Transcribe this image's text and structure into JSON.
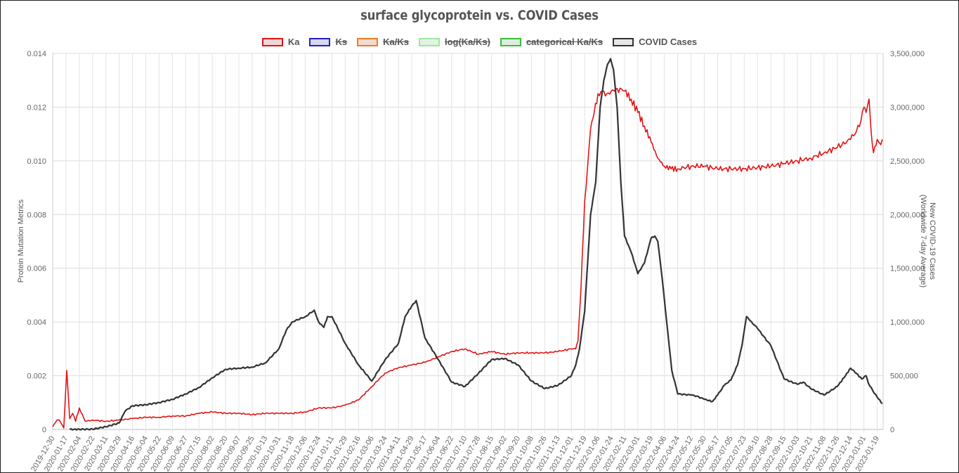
{
  "chart_data": {
    "type": "line",
    "title": "surface glycoprotein vs. COVID Cases",
    "legend": {
      "placement": "top",
      "items": [
        {
          "label": "Ka",
          "color": "#e11515",
          "fill": "#f2d6d6",
          "hidden": false
        },
        {
          "label": "Ks",
          "color": "#2222cc",
          "fill": "#d8d8ee",
          "hidden": true
        },
        {
          "label": "Ka/Ks",
          "color": "#f07a2a",
          "fill": "#f2dcd0",
          "hidden": true
        },
        {
          "label": "log(Ka/Ks)",
          "color": "#9de89d",
          "fill": "#e3f3e3",
          "hidden": true
        },
        {
          "label": "categorical Ka/Ks",
          "color": "#3dbb3d",
          "fill": "#dceedc",
          "hidden": true
        },
        {
          "label": "COVID Cases",
          "color": "#333333",
          "fill": "#e6e6e6",
          "hidden": false
        }
      ]
    },
    "y_left": {
      "label": "Protein Mutation Metrics",
      "ylim": [
        0,
        0.014
      ],
      "ticks": [
        "0",
        "0.002",
        "0.004",
        "0.006",
        "0.008",
        "0.010",
        "0.012",
        "0.014"
      ]
    },
    "y_right": {
      "label_lines": [
        "New COVID-19 Cases",
        "(Worldwide 7-day Average)"
      ],
      "ylim": [
        0,
        3500000
      ],
      "ticks": [
        "0",
        "500,000",
        "1,000,000",
        "1,500,000",
        "2,000,000",
        "2,500,000",
        "3,000,000",
        "3,500,000"
      ]
    },
    "grid": true,
    "x_ticks": [
      "2019-12-30",
      "2020-01-17",
      "2020-02-04",
      "2020-02-22",
      "2020-03-11",
      "2020-03-29",
      "2020-04-16",
      "2020-05-04",
      "2020-05-22",
      "2020-06-09",
      "2020-06-27",
      "2020-07-15",
      "2020-08-02",
      "2020-08-20",
      "2020-09-07",
      "2020-09-25",
      "2020-10-13",
      "2020-10-31",
      "2020-11-18",
      "2020-12-06",
      "2020-12-24",
      "2021-01-11",
      "2021-01-29",
      "2021-02-16",
      "2021-03-06",
      "2021-03-24",
      "2021-04-11",
      "2021-04-29",
      "2021-05-17",
      "2021-06-04",
      "2021-06-22",
      "2021-07-10",
      "2021-07-28",
      "2021-08-15",
      "2021-09-02",
      "2021-09-20",
      "2021-10-08",
      "2021-10-26",
      "2021-11-13",
      "2021-12-01",
      "2021-12-19",
      "2022-01-06",
      "2022-01-24",
      "2022-02-11",
      "2022-03-01",
      "2022-03-19",
      "2022-04-06",
      "2022-04-24",
      "2022-05-12",
      "2022-05-30",
      "2022-06-17",
      "2022-07-05",
      "2022-07-23",
      "2022-08-10",
      "2022-08-28",
      "2022-09-15",
      "2022-10-03",
      "2022-10-21",
      "2022-11-08",
      "2022-11-26",
      "2022-12-14",
      "2023-01-01",
      "2023-01-19"
    ],
    "series": [
      {
        "name": "Ka",
        "axis": "left",
        "color": "#e11515",
        "x": [
          "2019-12-30",
          "2020-01-05",
          "2020-01-08",
          "2020-01-11",
          "2020-01-14",
          "2020-01-18",
          "2020-01-22",
          "2020-01-26",
          "2020-01-30",
          "2020-02-04",
          "2020-02-12",
          "2020-02-22",
          "2020-03-11",
          "2020-03-29",
          "2020-04-16",
          "2020-05-04",
          "2020-05-22",
          "2020-06-09",
          "2020-06-27",
          "2020-07-15",
          "2020-08-02",
          "2020-08-20",
          "2020-09-07",
          "2020-09-25",
          "2020-10-13",
          "2020-10-31",
          "2020-11-18",
          "2020-12-06",
          "2020-12-24",
          "2021-01-11",
          "2021-01-29",
          "2021-02-16",
          "2021-03-06",
          "2021-03-24",
          "2021-04-11",
          "2021-04-29",
          "2021-05-17",
          "2021-06-04",
          "2021-06-22",
          "2021-07-10",
          "2021-07-28",
          "2021-08-15",
          "2021-09-02",
          "2021-09-20",
          "2021-10-08",
          "2021-10-26",
          "2021-11-13",
          "2021-12-01",
          "2021-12-07",
          "2021-12-10",
          "2021-12-14",
          "2021-12-19",
          "2021-12-23",
          "2021-12-27",
          "2022-01-01",
          "2022-01-06",
          "2022-01-12",
          "2022-01-18",
          "2022-01-24",
          "2022-02-01",
          "2022-02-11",
          "2022-02-20",
          "2022-03-01",
          "2022-03-10",
          "2022-03-19",
          "2022-03-28",
          "2022-04-06",
          "2022-04-15",
          "2022-04-24",
          "2022-05-12",
          "2022-05-30",
          "2022-06-17",
          "2022-07-05",
          "2022-07-23",
          "2022-08-10",
          "2022-08-28",
          "2022-09-15",
          "2022-10-03",
          "2022-10-21",
          "2022-11-08",
          "2022-11-26",
          "2022-12-14",
          "2022-12-22",
          "2022-12-28",
          "2023-01-01",
          "2023-01-04",
          "2023-01-08",
          "2023-01-11",
          "2023-01-14",
          "2023-01-19",
          "2023-01-24",
          "2023-01-26"
        ],
        "values": [
          0.0001,
          0.00035,
          0.00035,
          0.0002,
          5e-05,
          0.0022,
          0.0004,
          0.0006,
          0.0003,
          0.0008,
          0.0003,
          0.00035,
          0.0003,
          0.00035,
          0.0004,
          0.00045,
          0.00045,
          0.0005,
          0.0005,
          0.0006,
          0.00065,
          0.0006,
          0.0006,
          0.00055,
          0.0006,
          0.0006,
          0.0006,
          0.00065,
          0.0008,
          0.0008,
          0.0009,
          0.0011,
          0.0016,
          0.0021,
          0.0023,
          0.0024,
          0.0025,
          0.0027,
          0.0029,
          0.003,
          0.0028,
          0.0029,
          0.0028,
          0.00285,
          0.00285,
          0.00285,
          0.0029,
          0.003,
          0.003,
          0.0033,
          0.0052,
          0.0085,
          0.0098,
          0.0112,
          0.0118,
          0.0125,
          0.0126,
          0.0125,
          0.0126,
          0.0127,
          0.0126,
          0.0123,
          0.0118,
          0.0113,
          0.0107,
          0.0101,
          0.0098,
          0.0097,
          0.0097,
          0.0098,
          0.0098,
          0.0097,
          0.0097,
          0.0097,
          0.00975,
          0.0098,
          0.0099,
          0.01,
          0.0101,
          0.0103,
          0.0105,
          0.0108,
          0.0111,
          0.0115,
          0.012,
          0.0118,
          0.0123,
          0.011,
          0.0103,
          0.0108,
          0.0106,
          0.0108
        ]
      },
      {
        "name": "COVID Cases",
        "axis": "right",
        "color": "#333333",
        "x": [
          "2020-01-22",
          "2020-02-04",
          "2020-02-22",
          "2020-03-11",
          "2020-03-29",
          "2020-04-06",
          "2020-04-16",
          "2020-05-04",
          "2020-05-22",
          "2020-06-09",
          "2020-06-27",
          "2020-07-15",
          "2020-08-02",
          "2020-08-20",
          "2020-09-07",
          "2020-09-25",
          "2020-10-13",
          "2020-10-31",
          "2020-11-10",
          "2020-11-18",
          "2020-12-06",
          "2020-12-18",
          "2020-12-24",
          "2020-12-31",
          "2021-01-05",
          "2021-01-11",
          "2021-01-29",
          "2021-02-16",
          "2021-03-06",
          "2021-03-24",
          "2021-04-11",
          "2021-04-20",
          "2021-04-29",
          "2021-05-05",
          "2021-05-17",
          "2021-06-04",
          "2021-06-22",
          "2021-07-10",
          "2021-07-28",
          "2021-08-15",
          "2021-09-02",
          "2021-09-20",
          "2021-10-08",
          "2021-10-26",
          "2021-11-13",
          "2021-12-01",
          "2021-12-07",
          "2021-12-12",
          "2021-12-19",
          "2021-12-27",
          "2022-01-03",
          "2022-01-09",
          "2022-01-14",
          "2022-01-19",
          "2022-01-23",
          "2022-01-27",
          "2022-02-01",
          "2022-02-06",
          "2022-02-11",
          "2022-02-20",
          "2022-03-01",
          "2022-03-10",
          "2022-03-19",
          "2022-03-24",
          "2022-03-28",
          "2022-04-03",
          "2022-04-09",
          "2022-04-16",
          "2022-04-24",
          "2022-05-12",
          "2022-05-20",
          "2022-05-30",
          "2022-06-10",
          "2022-06-17",
          "2022-06-26",
          "2022-07-05",
          "2022-07-14",
          "2022-07-20",
          "2022-07-26",
          "2022-08-02",
          "2022-08-10",
          "2022-08-28",
          "2022-09-15",
          "2022-10-03",
          "2022-10-11",
          "2022-10-21",
          "2022-11-08",
          "2022-11-26",
          "2022-12-07",
          "2022-12-14",
          "2022-12-22",
          "2022-12-29",
          "2023-01-04",
          "2023-01-07",
          "2023-01-13",
          "2023-01-19",
          "2023-01-26"
        ],
        "values": [
          0,
          1000,
          2000,
          25000,
          60000,
          170000,
          220000,
          230000,
          250000,
          280000,
          330000,
          390000,
          480000,
          560000,
          570000,
          580000,
          620000,
          750000,
          920000,
          1000000,
          1050000,
          1110000,
          1000000,
          950000,
          1050000,
          1050000,
          800000,
          600000,
          450000,
          650000,
          800000,
          1050000,
          1150000,
          1200000,
          850000,
          650000,
          440000,
          400000,
          520000,
          650000,
          660000,
          600000,
          450000,
          380000,
          410000,
          500000,
          600000,
          750000,
          1100000,
          2000000,
          2300000,
          3000000,
          3250000,
          3400000,
          3450000,
          3350000,
          3000000,
          2300000,
          1800000,
          1650000,
          1450000,
          1550000,
          1780000,
          1800000,
          1750000,
          1400000,
          1000000,
          550000,
          330000,
          320000,
          310000,
          280000,
          260000,
          320000,
          410000,
          460000,
          600000,
          780000,
          1050000,
          1000000,
          940000,
          780000,
          470000,
          420000,
          440000,
          380000,
          320000,
          400000,
          500000,
          570000,
          520000,
          470000,
          500000,
          430000,
          360000,
          300000,
          240000
        ]
      }
    ]
  }
}
